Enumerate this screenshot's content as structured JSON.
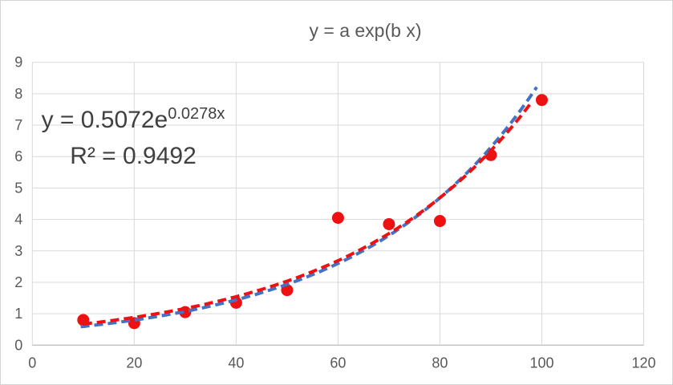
{
  "chart": {
    "title": "y = a exp(b x)",
    "annotation": {
      "eq_base": "y = 0.5072e",
      "eq_exp": "0.0278x",
      "r2": "R² = 0.9492"
    },
    "colors": {
      "background": "#FFFFFF",
      "frame_border": "#D5D5D5",
      "gridline": "#D9D9D9",
      "axis_line": "#BFBFBF",
      "title_text": "#595959",
      "tick_text": "#595959",
      "annotation_text": "#404040",
      "marker_red": "#EE1111",
      "trendline_red": "#EE1111",
      "trendline_blue": "#4472C4"
    }
  },
  "chart_data": {
    "type": "scatter",
    "title": "y = a exp(b x)",
    "x": [
      10,
      20,
      30,
      40,
      50,
      60,
      70,
      80,
      90,
      100
    ],
    "y": [
      0.8,
      0.7,
      1.05,
      1.35,
      1.75,
      4.05,
      3.85,
      3.95,
      6.05,
      7.8
    ],
    "xlim": [
      0,
      120
    ],
    "ylim": [
      0,
      9
    ],
    "x_ticks": [
      0,
      20,
      40,
      60,
      80,
      100,
      120
    ],
    "y_ticks": [
      0,
      1,
      2,
      3,
      4,
      5,
      6,
      7,
      8,
      9
    ],
    "grid": true,
    "legend": "none",
    "marker": {
      "radius": 7.5
    },
    "trendlines": [
      {
        "name": "fitted-curve-blue",
        "form": "y = a*exp(b*x)",
        "a": 0.4427,
        "b": 0.0295,
        "x_start": 9.5,
        "x_end": 99.0,
        "dashed": true
      },
      {
        "name": "excel-trendline-red",
        "form": "y = a*exp(b*x)",
        "a": 0.5072,
        "b": 0.0278,
        "x_start": 10,
        "x_end": 98.2,
        "dashed": true,
        "equation_label": "y = 0.5072e^(0.0278x)",
        "r_squared": 0.9492
      }
    ]
  }
}
